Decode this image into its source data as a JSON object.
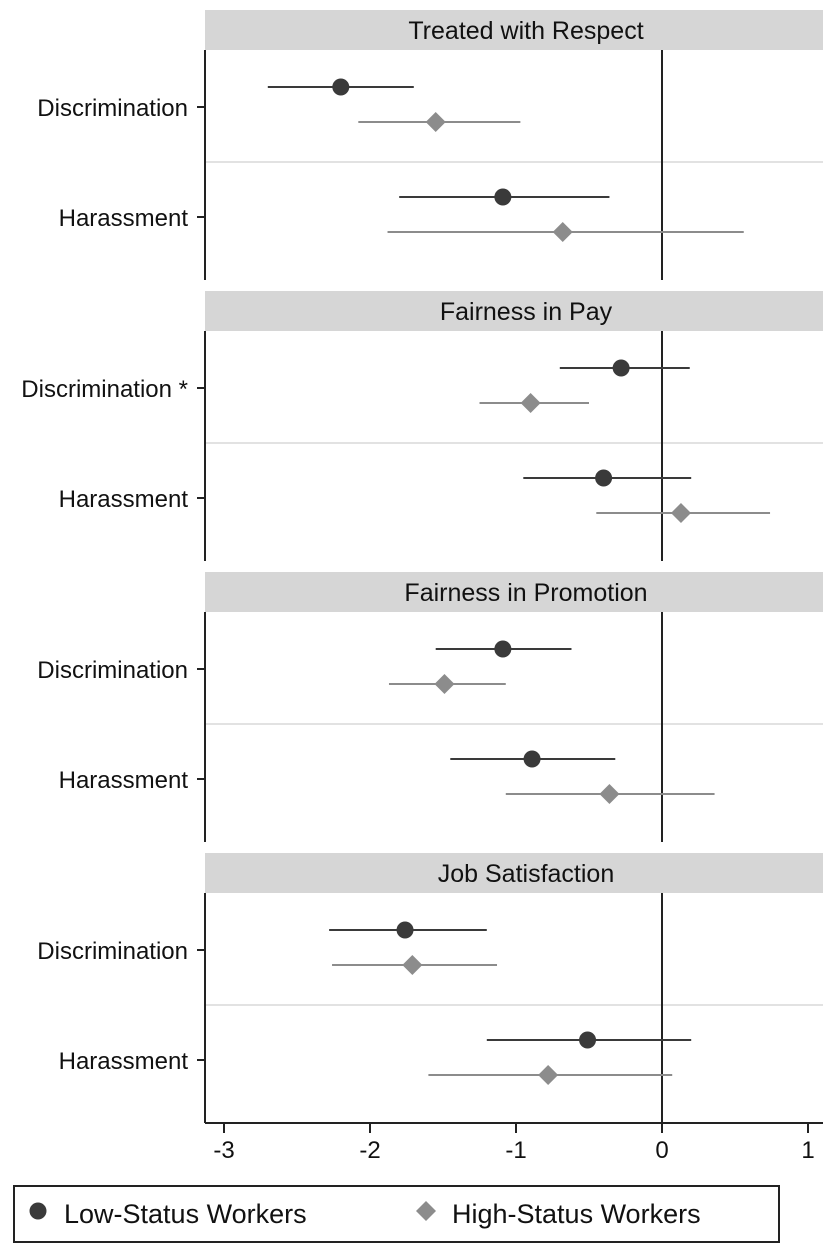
{
  "chart_data": {
    "type": "scatter",
    "subtype": "coefficient-plot",
    "title": "",
    "xlabel": "",
    "ylabel": "",
    "xlim": [
      -3.1,
      1.1
    ],
    "xticks": [
      -3,
      -2,
      -1,
      0,
      1
    ],
    "xtick_labels": [
      "-3",
      "-2",
      "-1",
      "0",
      "1"
    ],
    "reference_line": 0,
    "grid": false,
    "legend_position": "bottom",
    "series": [
      {
        "key": "low",
        "name": "Low-Status Workers",
        "marker": "circle",
        "color": "#3a3a3a"
      },
      {
        "key": "high",
        "name": "High-Status Workers",
        "marker": "diamond",
        "color": "#8c8c8c"
      }
    ],
    "panels": [
      {
        "title": "Treated with Respect",
        "rows": [
          {
            "label": "Discrimination",
            "low": {
              "estimate": -2.2,
              "ci": [
                -2.7,
                -1.7
              ]
            },
            "high": {
              "estimate": -1.55,
              "ci": [
                -2.08,
                -0.97
              ]
            }
          },
          {
            "label": "Harassment",
            "low": {
              "estimate": -1.09,
              "ci": [
                -1.8,
                -0.36
              ]
            },
            "high": {
              "estimate": -0.68,
              "ci": [
                -1.88,
                0.56
              ]
            }
          }
        ]
      },
      {
        "title": "Fairness in Pay",
        "rows": [
          {
            "label": "Discrimination *",
            "low": {
              "estimate": -0.28,
              "ci": [
                -0.7,
                0.19
              ]
            },
            "high": {
              "estimate": -0.9,
              "ci": [
                -1.25,
                -0.5
              ]
            }
          },
          {
            "label": "Harassment",
            "low": {
              "estimate": -0.4,
              "ci": [
                -0.95,
                0.2
              ]
            },
            "high": {
              "estimate": 0.13,
              "ci": [
                -0.45,
                0.74
              ]
            }
          }
        ]
      },
      {
        "title": "Fairness in Promotion",
        "rows": [
          {
            "label": "Discrimination",
            "low": {
              "estimate": -1.09,
              "ci": [
                -1.55,
                -0.62
              ]
            },
            "high": {
              "estimate": -1.49,
              "ci": [
                -1.87,
                -1.07
              ]
            }
          },
          {
            "label": "Harassment",
            "low": {
              "estimate": -0.89,
              "ci": [
                -1.45,
                -0.32
              ]
            },
            "high": {
              "estimate": -0.36,
              "ci": [
                -1.07,
                0.36
              ]
            }
          }
        ]
      },
      {
        "title": "Job Satisfaction",
        "rows": [
          {
            "label": "Discrimination",
            "low": {
              "estimate": -1.76,
              "ci": [
                -2.28,
                -1.2
              ]
            },
            "high": {
              "estimate": -1.71,
              "ci": [
                -2.26,
                -1.13
              ]
            }
          },
          {
            "label": "Harassment",
            "low": {
              "estimate": -0.51,
              "ci": [
                -1.2,
                0.2
              ]
            },
            "high": {
              "estimate": -0.78,
              "ci": [
                -1.6,
                0.07
              ]
            }
          }
        ]
      }
    ]
  }
}
